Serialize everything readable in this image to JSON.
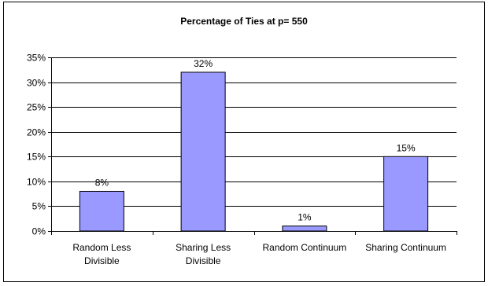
{
  "chart_data": {
    "type": "bar",
    "title": "Percentage of Ties at p= 550",
    "xlabel": "",
    "ylabel": "",
    "categories": [
      [
        "Random Less",
        "Divisible"
      ],
      [
        "Sharing Less",
        "Divisible"
      ],
      [
        "Random Continuum"
      ],
      [
        "Sharing Continuum"
      ]
    ],
    "values": [
      0.08,
      0.32,
      0.01,
      0.15
    ],
    "data_labels": [
      "8%",
      "32%",
      "1%",
      "15%"
    ],
    "ylim": [
      0,
      0.35
    ],
    "yticks": [
      0,
      0.05,
      0.1,
      0.15,
      0.2,
      0.25,
      0.3,
      0.35
    ],
    "ytick_labels": [
      "0%",
      "5%",
      "10%",
      "15%",
      "20%",
      "25%",
      "30%",
      "35%"
    ],
    "grid": true,
    "legend": "none",
    "colors": {
      "bar_fill": "#9999ff",
      "bar_stroke": "#000000",
      "gridline": "#000000",
      "axis": "#000000",
      "background": "#ffffff"
    }
  }
}
